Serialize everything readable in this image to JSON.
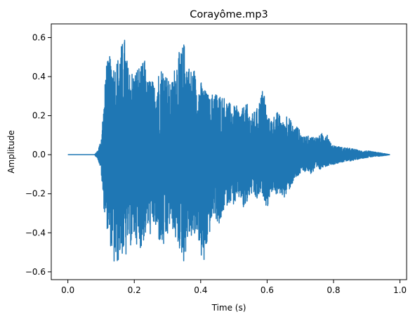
{
  "chart_data": {
    "type": "line",
    "title": "Corayôme.mp3",
    "xlabel": "Time (s)",
    "ylabel": "Amplitude",
    "xlim": [
      -0.05,
      1.02
    ],
    "ylim": [
      -0.64,
      0.67
    ],
    "xticks": [
      0.0,
      0.2,
      0.4,
      0.6,
      0.8,
      1.0
    ],
    "xtick_labels": [
      "0.0",
      "0.2",
      "0.4",
      "0.6",
      "0.8",
      "1.0"
    ],
    "yticks": [
      -0.6,
      -0.4,
      -0.2,
      0.0,
      0.2,
      0.4,
      0.6
    ],
    "ytick_labels": [
      "−0.6",
      "−0.4",
      "−0.2",
      "0.0",
      "0.2",
      "0.4",
      "0.6"
    ],
    "grid": false,
    "line_color": "#1f77b4",
    "series": [
      {
        "x": [
          0.0,
          0.08,
          0.09,
          0.1,
          0.105,
          0.11,
          0.115,
          0.12,
          0.13,
          0.14,
          0.15,
          0.16,
          0.165,
          0.17,
          0.175,
          0.18,
          0.19,
          0.2,
          0.21,
          0.22,
          0.23,
          0.24,
          0.25,
          0.26,
          0.27,
          0.28,
          0.29,
          0.3,
          0.31,
          0.32,
          0.33,
          0.34,
          0.35,
          0.36,
          0.37,
          0.38,
          0.39,
          0.4,
          0.41,
          0.42,
          0.43,
          0.44,
          0.45,
          0.46,
          0.47,
          0.48,
          0.49,
          0.5,
          0.51,
          0.52,
          0.53,
          0.54,
          0.55,
          0.56,
          0.57,
          0.58,
          0.59,
          0.6,
          0.61,
          0.62,
          0.63,
          0.64,
          0.65,
          0.66,
          0.67,
          0.68,
          0.69,
          0.7,
          0.71,
          0.72,
          0.73,
          0.74,
          0.75,
          0.76,
          0.77,
          0.78,
          0.79,
          0.8,
          0.82,
          0.84,
          0.86,
          0.88,
          0.9,
          0.92,
          0.94,
          0.97
        ],
        "y_max": [
          0.0,
          0.0,
          0.02,
          0.08,
          0.2,
          0.28,
          0.5,
          0.48,
          0.52,
          0.46,
          0.5,
          0.56,
          0.58,
          0.61,
          0.55,
          0.46,
          0.44,
          0.42,
          0.46,
          0.45,
          0.5,
          0.38,
          0.4,
          0.36,
          0.42,
          0.45,
          0.46,
          0.4,
          0.35,
          0.44,
          0.52,
          0.53,
          0.58,
          0.48,
          0.44,
          0.45,
          0.35,
          0.38,
          0.34,
          0.32,
          0.28,
          0.35,
          0.31,
          0.31,
          0.3,
          0.28,
          0.26,
          0.25,
          0.25,
          0.22,
          0.25,
          0.26,
          0.2,
          0.22,
          0.24,
          0.3,
          0.36,
          0.2,
          0.18,
          0.2,
          0.22,
          0.2,
          0.16,
          0.22,
          0.18,
          0.14,
          0.15,
          0.12,
          0.09,
          0.1,
          0.09,
          0.1,
          0.09,
          0.1,
          0.12,
          0.12,
          0.06,
          0.05,
          0.04,
          0.035,
          0.03,
          0.02,
          0.02,
          0.015,
          0.01,
          0.0
        ],
        "y_min": [
          0.0,
          0.0,
          -0.02,
          -0.08,
          -0.22,
          -0.3,
          -0.33,
          -0.41,
          -0.48,
          -0.58,
          -0.56,
          -0.5,
          -0.52,
          -0.51,
          -0.53,
          -0.45,
          -0.47,
          -0.43,
          -0.47,
          -0.48,
          -0.44,
          -0.38,
          -0.42,
          -0.36,
          -0.43,
          -0.47,
          -0.49,
          -0.43,
          -0.34,
          -0.42,
          -0.47,
          -0.5,
          -0.56,
          -0.44,
          -0.42,
          -0.45,
          -0.39,
          -0.52,
          -0.58,
          -0.46,
          -0.38,
          -0.3,
          -0.35,
          -0.38,
          -0.28,
          -0.26,
          -0.24,
          -0.26,
          -0.24,
          -0.22,
          -0.3,
          -0.25,
          -0.2,
          -0.22,
          -0.24,
          -0.2,
          -0.22,
          -0.28,
          -0.2,
          -0.18,
          -0.22,
          -0.2,
          -0.22,
          -0.21,
          -0.17,
          -0.14,
          -0.12,
          -0.1,
          -0.09,
          -0.08,
          -0.1,
          -0.09,
          -0.08,
          -0.08,
          -0.06,
          -0.06,
          -0.05,
          -0.05,
          -0.04,
          -0.035,
          -0.03,
          -0.02,
          -0.015,
          -0.01,
          -0.008,
          0.0
        ]
      }
    ]
  }
}
